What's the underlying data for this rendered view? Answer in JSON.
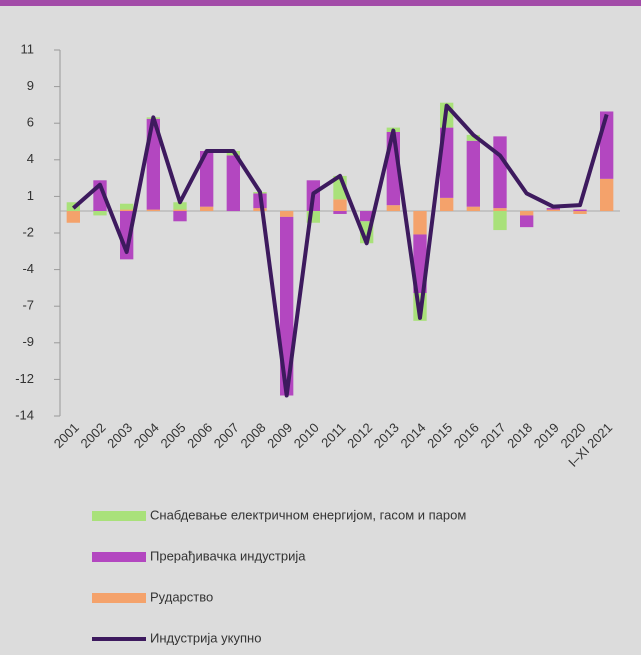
{
  "chart_data": {
    "type": "bar",
    "categories": [
      "2001",
      "2002",
      "2003",
      "2004",
      "2005",
      "2006",
      "2007",
      "2008",
      "2009",
      "2010",
      "2011",
      "2012",
      "2013",
      "2014",
      "2015",
      "2016",
      "2017",
      "2018",
      "2019",
      "2020",
      "I–XI 2021"
    ],
    "ylim": [
      -14,
      11
    ],
    "yticks": [
      -14,
      {
        "value": -11.5,
        "label": "-12"
      },
      -9,
      {
        "value": -6.5,
        "label": "-7"
      },
      -4,
      {
        "value": -1.5,
        "label": "-2"
      },
      1,
      {
        "value": 3.5,
        "label": "4"
      },
      6,
      {
        "value": 8.5,
        "label": "9"
      },
      11
    ],
    "series": [
      {
        "name": "Рударство",
        "color": "#f4a26b",
        "values": [
          -0.8,
          0,
          0.1,
          0.1,
          0.1,
          0.3,
          0,
          0.2,
          -0.4,
          0,
          0.8,
          0,
          0.4,
          -1.6,
          0.9,
          0.3,
          0.2,
          -0.3,
          0.1,
          -0.2,
          2.2
        ]
      },
      {
        "name": "Прерађивачка индустрија",
        "color": "#b347c0",
        "values": [
          0,
          2.1,
          -3.3,
          6.2,
          -0.7,
          3.8,
          3.8,
          1.0,
          -12.2,
          2.1,
          -0.2,
          -0.7,
          5.0,
          -4.0,
          4.8,
          4.5,
          4.9,
          -0.8,
          0.1,
          0.1,
          4.6
        ]
      },
      {
        "name": "Снабдевање електричном енергијом, гасом и паром",
        "color": "#a9e17a",
        "values": [
          0.6,
          -0.3,
          0.4,
          0.1,
          0.5,
          0,
          0.3,
          0.1,
          0,
          -0.8,
          1.6,
          -1.5,
          0.3,
          -1.9,
          1.7,
          0.4,
          -1.3,
          0,
          0,
          0,
          0
        ]
      }
    ],
    "line": {
      "name": "Индустрија укупно",
      "color": "#3d1a5e",
      "values": [
        0.2,
        1.8,
        -2.8,
        6.4,
        0.6,
        4.1,
        4.1,
        1.3,
        -12.6,
        1.2,
        2.4,
        -2.2,
        5.5,
        -7.3,
        7.2,
        5.2,
        3.8,
        1.2,
        0.3,
        0.4,
        6.6
      ]
    }
  }
}
